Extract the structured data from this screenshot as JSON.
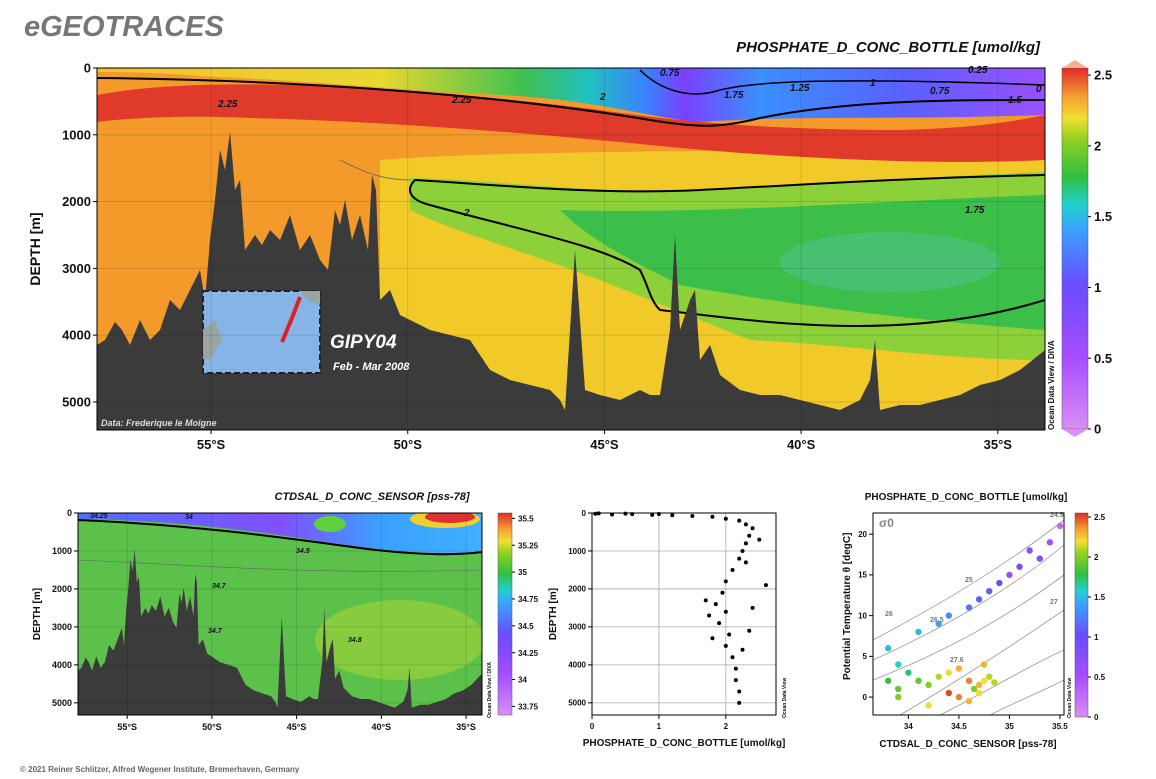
{
  "logo": "eGEOTRACES",
  "footer": "© 2021 Reiner Schlitzer, Alfred Wegener Institute, Bremerhaven, Germany",
  "chart_data": [
    {
      "type": "section",
      "title": "PHOSPHATE_D_CONC_BOTTLE [umol/kg]",
      "ylabel": "DEPTH [m]",
      "xlim": [
        -57.9,
        -33.8
      ],
      "xticks": [
        {
          "value": -55,
          "label": "55°S"
        },
        {
          "value": -50,
          "label": "50°S"
        },
        {
          "value": -45,
          "label": "45°S"
        },
        {
          "value": -40,
          "label": "40°S"
        },
        {
          "value": -35,
          "label": "35°S"
        }
      ],
      "ylim": [
        0,
        5420
      ],
      "y_inverted": true,
      "yticks": [
        0,
        1000,
        2000,
        3000,
        4000,
        5000
      ],
      "grid": true,
      "clim": [
        0,
        2.55
      ],
      "cticks": [
        0,
        0.5,
        1,
        1.5,
        2,
        2.5
      ],
      "colorbar_label": "Ocean Data View / DIVA",
      "cruise": "GIPY04",
      "period": "Feb - Mar 2008",
      "credit": "Data: Frederique le Moigne",
      "contour_labels": [
        0.75,
        1,
        1.25,
        0.75,
        0.25,
        0,
        1.5,
        1.75,
        2,
        2.25,
        2.25,
        2,
        1.75
      ]
    },
    {
      "type": "section",
      "title": "CTDSAL_D_CONC_SENSOR [pss-78]",
      "ylabel": "DEPTH [m]",
      "xlim": [
        -57.9,
        -34.06
      ],
      "xticks": [
        {
          "value": -55,
          "label": "55°S"
        },
        {
          "value": -50,
          "label": "50°S"
        },
        {
          "value": -45,
          "label": "45°S"
        },
        {
          "value": -40,
          "label": "40°S"
        },
        {
          "value": -35,
          "label": "35°S"
        }
      ],
      "ylim": [
        0,
        5320
      ],
      "y_inverted": true,
      "yticks": [
        0,
        1000,
        2000,
        3000,
        4000,
        5000
      ],
      "grid": true,
      "clim": [
        33.67,
        35.55
      ],
      "cticks": [
        33.75,
        34,
        34.25,
        34.5,
        34.75,
        35,
        35.25,
        35.5
      ],
      "colorbar_label": "Ocean Data View / DIVA",
      "contour_labels": [
        34.25,
        34,
        34.5,
        34.7,
        34.7,
        34.8
      ]
    },
    {
      "type": "scatter",
      "xlabel": "PHOSPHATE_D_CONC_BOTTLE [umol/kg]",
      "ylabel": "DEPTH [m]",
      "xlim": [
        0,
        2.75
      ],
      "xticks": [
        0,
        1,
        2
      ],
      "ylim": [
        0,
        5320
      ],
      "y_inverted": true,
      "yticks": [
        0,
        1000,
        2000,
        3000,
        4000,
        5000
      ],
      "grid": true,
      "color": "#000000",
      "watermark": "Ocean Data View",
      "x": [
        0.05,
        0.3,
        0.6,
        0.9,
        1.2,
        1.5,
        1.8,
        2.0,
        2.2,
        2.3,
        2.4,
        2.35,
        2.3,
        2.25,
        2.2,
        2.1,
        2.0,
        1.95,
        1.85,
        2.0,
        1.9,
        2.05,
        2.0,
        2.1,
        2.15,
        2.15,
        2.2,
        2.2,
        2.6,
        2.5,
        1.7,
        1.75,
        1.8,
        2.3,
        2.4,
        2.35,
        2.25,
        0.1,
        0.5,
        1.0
      ],
      "values": [
        20,
        40,
        30,
        50,
        60,
        80,
        100,
        150,
        200,
        300,
        400,
        600,
        800,
        1000,
        1200,
        1500,
        1800,
        2100,
        2400,
        2600,
        2900,
        3200,
        3500,
        3800,
        4100,
        4400,
        4700,
        5000,
        1900,
        700,
        2300,
        2700,
        3300,
        1300,
        2500,
        3100,
        3600,
        10,
        15,
        25
      ]
    },
    {
      "type": "scatter",
      "title": "PHOSPHATE_D_CONC_BOTTLE [umol/kg]",
      "xlabel": "CTDSAL_D_CONC_SENSOR [pss-78]",
      "ylabel": "Potential Temperature θ [degC]",
      "xlim": [
        33.65,
        35.54
      ],
      "xticks": [
        34,
        34.5,
        35,
        35.5
      ],
      "ylim": [
        -2.2,
        22.6
      ],
      "yticks": [
        0,
        5,
        10,
        15,
        20
      ],
      "clim": [
        0,
        2.55
      ],
      "cticks": [
        0,
        0.5,
        1,
        1.5,
        2,
        2.5
      ],
      "watermark": "Ocean Data View",
      "density_label": "σ0",
      "density_contours": [
        24.5,
        25,
        26,
        26.5,
        27,
        27.6
      ],
      "x": [
        35.5,
        35.4,
        35.3,
        35.1,
        34.9,
        34.8,
        34.6,
        34.4,
        34.3,
        34.1,
        33.8,
        33.9,
        33.8,
        33.9,
        34.0,
        34.1,
        34.2,
        34.3,
        34.4,
        34.5,
        34.6,
        34.7,
        34.75,
        34.8,
        34.65,
        34.7,
        34.6,
        34.5,
        34.4,
        35.0,
        35.2,
        34.7,
        33.9,
        34.2,
        34.75,
        34.85
      ],
      "values": [
        21,
        19,
        17,
        16,
        14,
        13,
        11,
        10,
        9,
        8,
        6,
        4,
        2,
        1,
        3,
        2,
        1.5,
        2.5,
        3,
        3.5,
        2,
        1.5,
        2,
        2.5,
        1,
        0.5,
        -0.5,
        0,
        0.5,
        15,
        18,
        12,
        0,
        -1,
        4,
        1.8
      ],
      "c": [
        0.3,
        0.5,
        0.8,
        0.9,
        1.0,
        1.1,
        1.2,
        1.3,
        1.4,
        1.5,
        1.5,
        1.6,
        1.8,
        1.9,
        1.7,
        1.9,
        2.0,
        2.1,
        2.2,
        2.3,
        2.4,
        2.3,
        2.2,
        2.1,
        2.0,
        2.2,
        2.3,
        2.4,
        2.5,
        0.6,
        0.7,
        1.1,
        2.0,
        2.2,
        2.3,
        2.1
      ]
    }
  ]
}
